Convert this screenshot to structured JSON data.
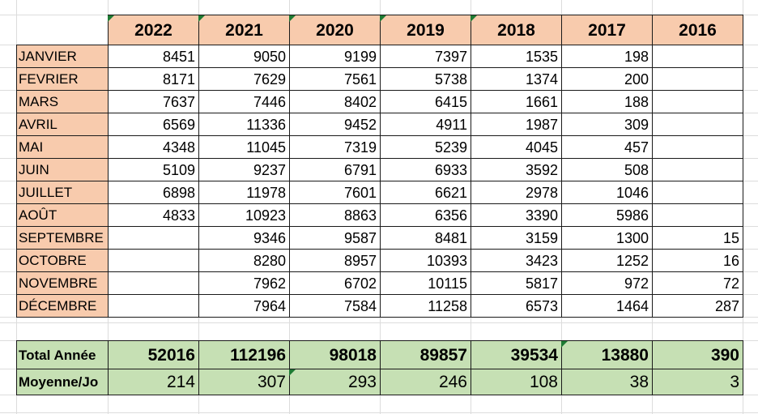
{
  "years": [
    "2022",
    "2021",
    "2020",
    "2019",
    "2018",
    "2017",
    "2016"
  ],
  "months": [
    "JANVIER",
    "FEVRIER",
    "MARS",
    "AVRIL",
    "MAI",
    "JUIN",
    "JUILLET",
    "AOÛT",
    "SEPTEMBRE",
    "OCTOBRE",
    "NOVEMBRE",
    "DÉCEMBRE"
  ],
  "values": [
    [
      "8451",
      "9050",
      "9199",
      "7397",
      "1535",
      "198",
      ""
    ],
    [
      "8171",
      "7629",
      "7561",
      "5738",
      "1374",
      "200",
      ""
    ],
    [
      "7637",
      "7446",
      "8402",
      "6415",
      "1661",
      "188",
      ""
    ],
    [
      "6569",
      "11336",
      "9452",
      "4911",
      "1987",
      "309",
      ""
    ],
    [
      "4348",
      "11045",
      "7319",
      "5239",
      "4045",
      "457",
      ""
    ],
    [
      "5109",
      "9237",
      "6791",
      "6933",
      "3592",
      "508",
      ""
    ],
    [
      "6898",
      "11978",
      "7601",
      "6621",
      "2978",
      "1046",
      ""
    ],
    [
      "4833",
      "10923",
      "8863",
      "6356",
      "3390",
      "5986",
      ""
    ],
    [
      "",
      "9346",
      "9587",
      "8481",
      "3159",
      "1300",
      "15"
    ],
    [
      "",
      "8280",
      "8957",
      "10393",
      "3423",
      "1252",
      "16"
    ],
    [
      "",
      "7962",
      "6702",
      "10115",
      "5817",
      "972",
      "72"
    ],
    [
      "",
      "7964",
      "7584",
      "11258",
      "6573",
      "1464",
      "287"
    ]
  ],
  "total_label": "Total Année",
  "totals": [
    "52016",
    "112196",
    "98018",
    "89857",
    "39534",
    "13880",
    "390"
  ],
  "average_label": "Moyenne/Jo",
  "averages": [
    "214",
    "307",
    "293",
    "246",
    "108",
    "38",
    "3"
  ],
  "colors": {
    "header_fill": "#f8cbad",
    "total_fill": "#c6e0b4",
    "border": "#1a1a1a",
    "gridline": "#dcdcdc",
    "error_flag": "#1e7b34"
  }
}
